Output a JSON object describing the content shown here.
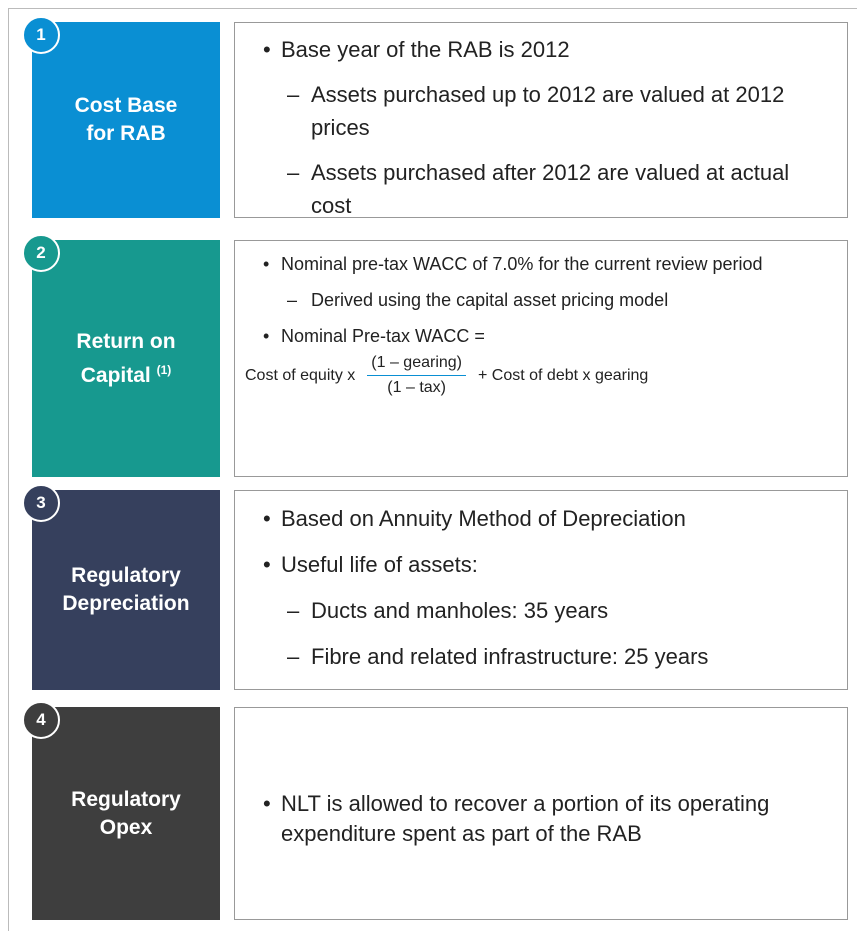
{
  "rows": [
    {
      "number": "1",
      "title_lines": [
        "Cost Base",
        "for RAB"
      ],
      "color": "#0a8fd3",
      "items": [
        {
          "level": 1,
          "text": "Base year of the RAB is 2012"
        },
        {
          "level": 2,
          "text": "Assets purchased up to 2012 are valued at 2012 prices"
        },
        {
          "level": 2,
          "text": "Assets purchased after 2012 are valued at actual cost"
        }
      ]
    },
    {
      "number": "2",
      "title_lines": [
        "Return on",
        "Capital"
      ],
      "title_sup": "(1)",
      "color": "#17998f",
      "items": [
        {
          "level": 1,
          "text": "Nominal pre-tax WACC of 7.0% for the current review period"
        },
        {
          "level": 2,
          "text": "Derived using the capital asset pricing model"
        },
        {
          "level": 1,
          "text": "Nominal Pre-tax WACC ="
        }
      ],
      "formula": {
        "left": "Cost of equity x",
        "numerator": "(1 – gearing)",
        "denominator": "(1 – tax)",
        "right": "+ Cost of debt x gearing"
      }
    },
    {
      "number": "3",
      "title_lines": [
        "Regulatory",
        "Depreciation"
      ],
      "color": "#36405d",
      "items": [
        {
          "level": 1,
          "text": "Based on Annuity Method of Depreciation"
        },
        {
          "level": 1,
          "text": "Useful life of assets:"
        },
        {
          "level": 2,
          "text": "Ducts and manholes: 35 years"
        },
        {
          "level": 2,
          "text": "Fibre and related infrastructure: 25 years"
        }
      ]
    },
    {
      "number": "4",
      "title_lines": [
        "Regulatory",
        "Opex"
      ],
      "color": "#3e3e3e",
      "items": [
        {
          "level": 1,
          "text": "NLT is allowed to recover a portion of its operating expenditure spent as part of the RAB"
        }
      ]
    }
  ]
}
